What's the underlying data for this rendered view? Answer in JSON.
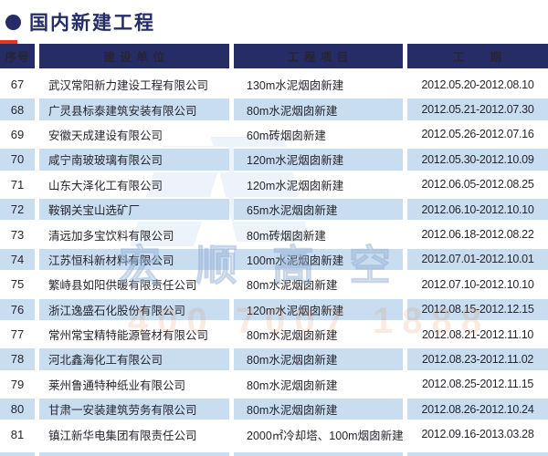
{
  "page": {
    "title": "国内新建工程"
  },
  "table": {
    "headers": [
      "序号",
      "建 设 单 位",
      "工 程 项 目",
      "工　　期"
    ],
    "rows": [
      {
        "no": "67",
        "company": "武汉常阳新力建设工程有限公司",
        "project": "130m水泥烟囱新建",
        "period": "2012.05.20-2012.08.10"
      },
      {
        "no": "68",
        "company": "广灵县标泰建筑安装有限公司",
        "project": "80m水泥烟囱新建",
        "period": "2012.05.21-2012.07.30"
      },
      {
        "no": "69",
        "company": "安徽天成建设有限公司",
        "project": "60m砖烟囱新建",
        "period": "2012.05.26-2012.07.16"
      },
      {
        "no": "70",
        "company": "咸宁南玻玻璃有限公司",
        "project": "120m水泥烟囱新建",
        "period": "2012.05.30-2012.10.09"
      },
      {
        "no": "71",
        "company": "山东大泽化工有限公司",
        "project": "120m水泥烟囱新建",
        "period": "2012.06.05-2012.08.25"
      },
      {
        "no": "72",
        "company": "鞍钢关宝山选矿厂",
        "project": "65m水泥烟囱新建",
        "period": "2012.06.10-2012.10.10"
      },
      {
        "no": "73",
        "company": "清远加多宝饮料有限公司",
        "project": "80m砖烟囱新建",
        "period": "2012.06.18-2012.08.22"
      },
      {
        "no": "74",
        "company": "江苏恒科新材料有限公司",
        "project": "100m水泥烟囱新建",
        "period": "2012.07.01-2012.10.01"
      },
      {
        "no": "75",
        "company": "繁峙县如阳供暖有限责任公司",
        "project": "80m水泥烟囱新建",
        "period": "2012.07.10-2012.10.10"
      },
      {
        "no": "76",
        "company": "浙江逸盛石化股份有限公司",
        "project": "120m水泥烟囱新建",
        "period": "2012.08.15-2012.12.15"
      },
      {
        "no": "77",
        "company": "常州常宝精特能源管材有限公司",
        "project": "80m水泥烟囱新建",
        "period": "2012.08.21-2012.11.10"
      },
      {
        "no": "78",
        "company": "河北鑫海化工有限公司",
        "project": "80m水泥烟囱新建",
        "period": "2012.08.23-2012.11.02"
      },
      {
        "no": "79",
        "company": "莱州鲁通特种纸业有限公司",
        "project": "80m水泥烟囱新建",
        "period": "2012.08.25-2012.11.15"
      },
      {
        "no": "80",
        "company": "甘肃一安装建筑劳务有限公司",
        "project": "80m水泥烟囱新建",
        "period": "2012.08.26-2012.10.24"
      },
      {
        "no": "81",
        "company": "镇江新华电集团有限责任公司",
        "project": "2000㎡冷却塔、100m烟囱新建",
        "period": "2012.09.16-2013.03.28"
      }
    ]
  },
  "watermark": {
    "brand": "宏顺高空",
    "phone": "400 7007 1888"
  },
  "colors": {
    "navy": "#252c66",
    "stripe_blue": "#c9ddf1",
    "accent_red": "#e03a20",
    "text": "#26262e"
  }
}
